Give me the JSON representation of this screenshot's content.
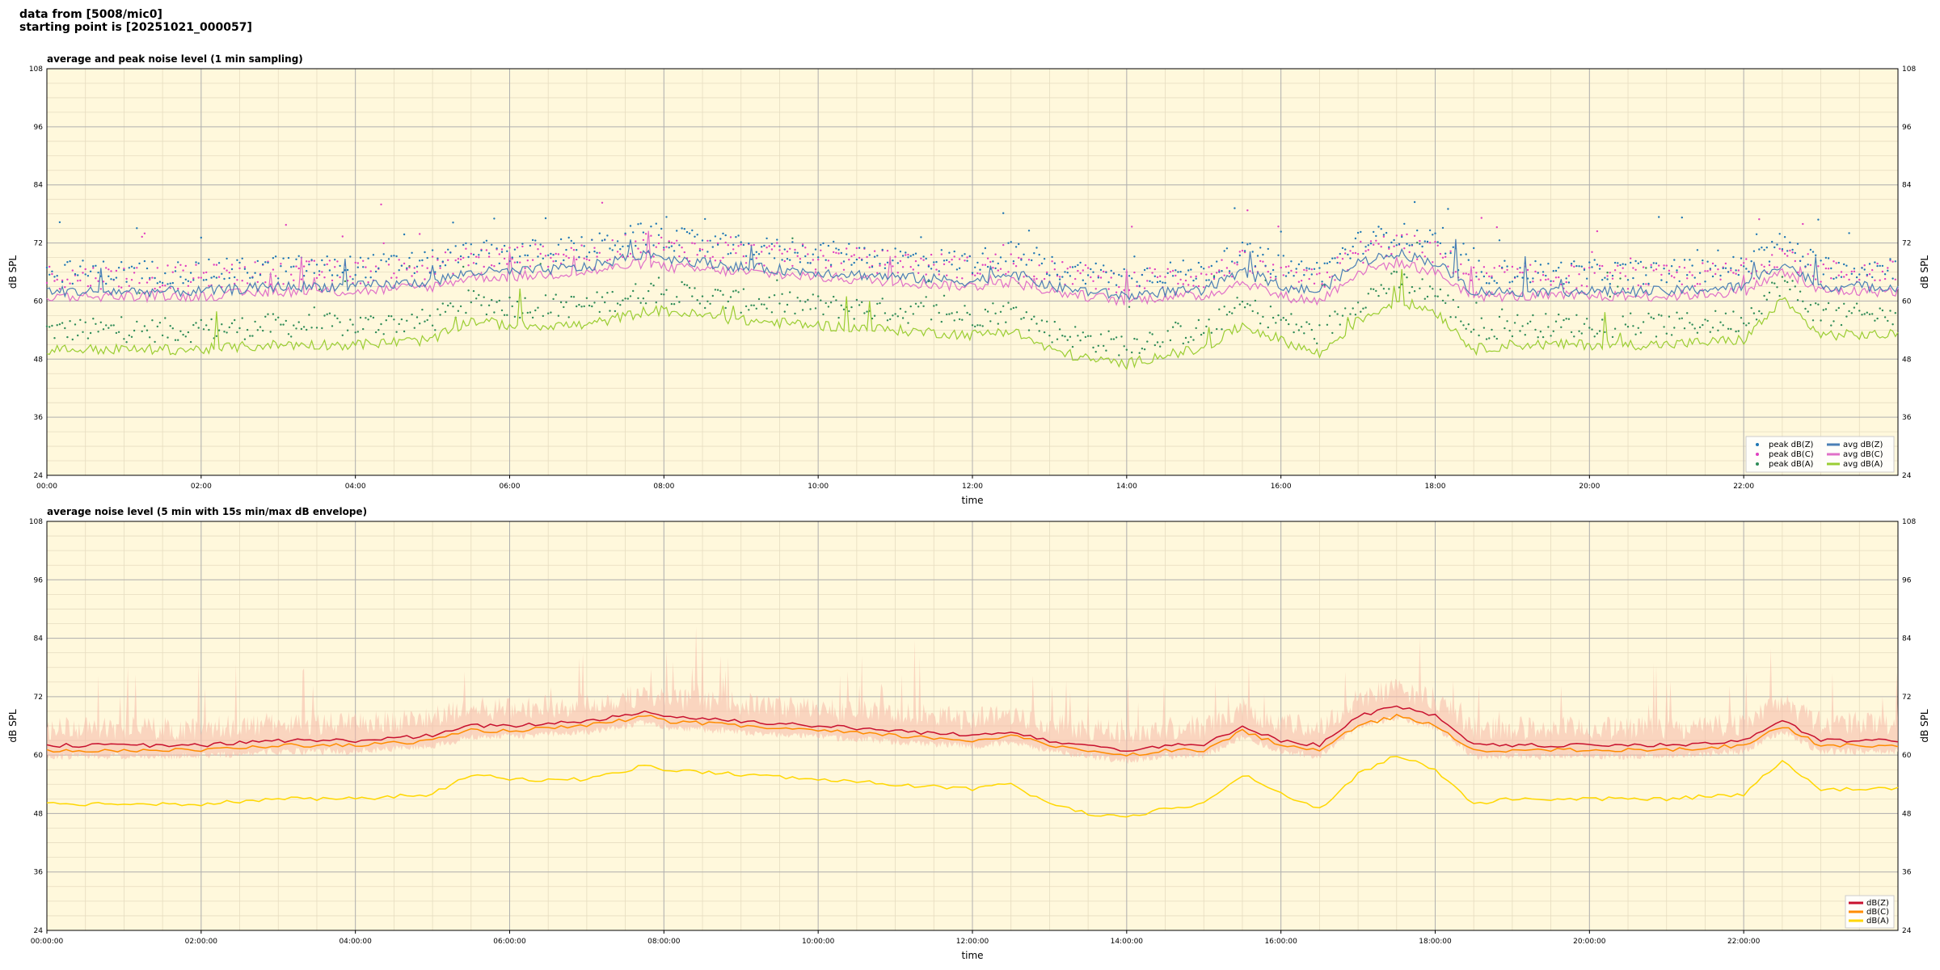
{
  "header": {
    "line1": "data from [5008/mic0]",
    "line2": "starting point is [20251021_000057]"
  },
  "style": {
    "plot_bg": "#fff8dc",
    "grid_major": "#b0b0b0",
    "grid_minor": "#e6dcc0",
    "colors": {
      "peak_z": "#1f77b4",
      "peak_c": "#e040c0",
      "peak_a": "#2e8b57",
      "avg_z": "#4a7fb5",
      "avg_c": "#e070c8",
      "avg_a": "#9acd32",
      "dbz": "#c8102e",
      "dbc": "#ff8c00",
      "dba": "#ffd700",
      "envelope": "#f6b8a8"
    }
  },
  "chart_data": [
    {
      "type": "line",
      "title": "average and peak noise level (1 min sampling)",
      "xlabel": "time",
      "ylabel": "dB SPL",
      "ylabel_right": "dB SPL",
      "xlim_hours": [
        0,
        24
      ],
      "ylim": [
        24,
        108
      ],
      "yticks": [
        24,
        36,
        48,
        60,
        72,
        84,
        96,
        108
      ],
      "xtick_labels": [
        "00:00",
        "02:00",
        "04:00",
        "06:00",
        "08:00",
        "10:00",
        "12:00",
        "14:00",
        "16:00",
        "18:00",
        "20:00",
        "22:00"
      ],
      "grid": true,
      "legend_position": "lower-right",
      "legend": [
        {
          "label": "peak dB(Z)",
          "kind": "marker",
          "color": "#1f77b4"
        },
        {
          "label": "avg dB(Z)",
          "kind": "line",
          "color": "#4a7fb5"
        },
        {
          "label": "peak dB(C)",
          "kind": "marker",
          "color": "#e040c0"
        },
        {
          "label": "avg dB(C)",
          "kind": "line",
          "color": "#e070c8"
        },
        {
          "label": "peak dB(A)",
          "kind": "marker",
          "color": "#2e8b57"
        },
        {
          "label": "avg dB(A)",
          "kind": "line",
          "color": "#9acd32"
        }
      ],
      "series_profile": {
        "hours": [
          0,
          1,
          2,
          3,
          4,
          5,
          5.5,
          6,
          7,
          7.8,
          8,
          9,
          10,
          11,
          12,
          12.5,
          13,
          13.5,
          14,
          14.5,
          15,
          15.5,
          16,
          16.5,
          17,
          17.5,
          18,
          18.5,
          19,
          20,
          21,
          22,
          22.5,
          23,
          24
        ],
        "avg_z": [
          62,
          62,
          62,
          63,
          63,
          64,
          66,
          66,
          67,
          70,
          69,
          67,
          66,
          65,
          64,
          66,
          63,
          62,
          61,
          62,
          62,
          66,
          63,
          62,
          68,
          70,
          68,
          62,
          62,
          62,
          62,
          63,
          68,
          63,
          63
        ],
        "avg_c": [
          61,
          61,
          61,
          62,
          62,
          63,
          65,
          65,
          66,
          68,
          67,
          66,
          65,
          64,
          63,
          64,
          62,
          61,
          60,
          61,
          61,
          64,
          61,
          60,
          66,
          68,
          66,
          61,
          61,
          61,
          61,
          62,
          66,
          62,
          62
        ],
        "avg_a": [
          50,
          50,
          50,
          51,
          51,
          52,
          56,
          55,
          55,
          58,
          58,
          56,
          55,
          54,
          53,
          54,
          50,
          48,
          47,
          49,
          50,
          55,
          52,
          49,
          56,
          60,
          58,
          50,
          51,
          51,
          51,
          52,
          60,
          53,
          53
        ],
        "peak_offset": 3
      }
    },
    {
      "type": "line",
      "title": "average noise level (5 min with 15s min/max dB envelope)",
      "xlabel": "time",
      "ylabel": "dB SPL",
      "ylabel_right": "dB SPL",
      "xlim_hours": [
        0,
        24
      ],
      "ylim": [
        24,
        108
      ],
      "yticks": [
        24,
        36,
        48,
        60,
        72,
        84,
        96,
        108
      ],
      "xtick_labels": [
        "00:00:00",
        "02:00:00",
        "04:00:00",
        "06:00:00",
        "08:00:00",
        "10:00:00",
        "12:00:00",
        "14:00:00",
        "16:00:00",
        "18:00:00",
        "20:00:00",
        "22:00:00"
      ],
      "grid": true,
      "legend_position": "lower-right",
      "legend": [
        {
          "label": "dB(Z)",
          "kind": "line",
          "color": "#c8102e"
        },
        {
          "label": "dB(C)",
          "kind": "line",
          "color": "#ff8c00"
        },
        {
          "label": "dB(A)",
          "kind": "line",
          "color": "#ffd700"
        }
      ],
      "series_profile": {
        "hours": [
          0,
          1,
          2,
          3,
          4,
          5,
          5.5,
          6,
          7,
          7.8,
          8,
          9,
          10,
          11,
          12,
          12.5,
          13,
          13.5,
          14,
          14.5,
          15,
          15.5,
          16,
          16.5,
          17,
          17.5,
          18,
          18.5,
          19,
          20,
          21,
          22,
          22.5,
          23,
          24
        ],
        "dbz": [
          62,
          62,
          62,
          63,
          63,
          64,
          66,
          66,
          67,
          69,
          68,
          67,
          66,
          65,
          64,
          65,
          63,
          62,
          61,
          62,
          62,
          66,
          63,
          62,
          68,
          70,
          68,
          62,
          62,
          62,
          62,
          63,
          67,
          63,
          63
        ],
        "dbc": [
          61,
          61,
          61,
          62,
          62,
          63,
          65,
          65,
          66,
          68,
          67,
          66,
          65,
          64,
          63,
          64,
          62,
          61,
          60,
          61,
          61,
          65,
          62,
          61,
          66,
          68,
          66,
          61,
          61,
          61,
          61,
          62,
          66,
          62,
          62
        ],
        "dba": [
          50,
          50,
          50,
          51,
          51,
          52,
          56,
          55,
          55,
          58,
          57,
          56,
          55,
          54,
          53,
          54,
          50,
          48,
          47,
          49,
          50,
          56,
          52,
          49,
          56,
          60,
          57,
          50,
          51,
          51,
          51,
          52,
          59,
          53,
          53
        ],
        "envelope_spread": 5
      }
    }
  ]
}
